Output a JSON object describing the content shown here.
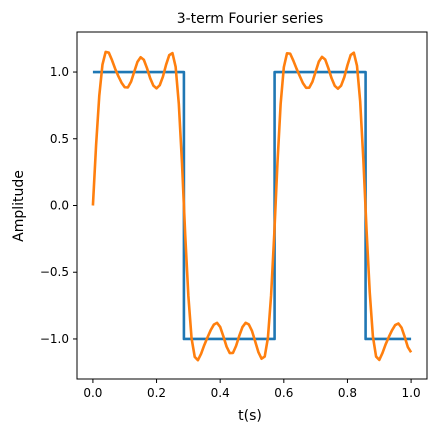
{
  "chart_data": {
    "type": "line",
    "title": "3-term Fourier series",
    "xlabel": "t(s)",
    "ylabel": "Amplitude",
    "xlim": [
      -0.05,
      1.05
    ],
    "ylim": [
      -1.3,
      1.3
    ],
    "xticks": [
      0.0,
      0.2,
      0.4,
      0.6,
      0.8,
      1.0
    ],
    "xtick_labels": [
      "0.0",
      "0.2",
      "0.4",
      "0.6",
      "0.8",
      "1.0"
    ],
    "yticks": [
      1.0,
      0.5,
      0.0,
      -0.5,
      -1.0
    ],
    "ytick_labels": [
      "1.0",
      "0.5",
      "0.0",
      "−0.5",
      "−1.0"
    ],
    "grid": false,
    "legend": "none",
    "series": [
      {
        "color": "#1f77b4",
        "x": [
          0.0,
          0.286,
          0.286,
          0.571,
          0.571,
          0.857,
          0.857,
          1.0
        ],
        "y": [
          1.0,
          1.0,
          -1.0,
          -1.0,
          1.0,
          1.0,
          -1.0,
          -1.0
        ]
      },
      {
        "color": "#ff7f0e",
        "x": [
          0.0,
          0.01,
          0.02,
          0.03,
          0.04,
          0.05,
          0.06,
          0.07,
          0.08,
          0.09,
          0.1,
          0.11,
          0.12,
          0.13,
          0.14,
          0.15,
          0.16,
          0.17,
          0.18,
          0.19,
          0.2,
          0.21,
          0.22,
          0.23,
          0.24,
          0.25,
          0.26,
          0.27,
          0.28,
          0.29,
          0.3,
          0.31,
          0.32,
          0.33,
          0.34,
          0.35,
          0.36,
          0.37,
          0.38,
          0.39,
          0.4,
          0.41,
          0.42,
          0.43,
          0.44,
          0.45,
          0.46,
          0.47,
          0.48,
          0.49,
          0.5,
          0.51,
          0.52,
          0.53,
          0.54,
          0.55,
          0.56,
          0.57,
          0.58,
          0.59,
          0.6,
          0.61,
          0.62,
          0.63,
          0.64,
          0.65,
          0.66,
          0.67,
          0.68,
          0.69,
          0.7,
          0.71,
          0.72,
          0.73,
          0.74,
          0.75,
          0.76,
          0.77,
          0.78,
          0.79,
          0.8,
          0.81,
          0.82,
          0.83,
          0.84,
          0.85,
          0.86,
          0.87,
          0.88,
          0.89,
          0.9,
          0.91,
          0.92,
          0.93,
          0.94,
          0.95,
          0.96,
          0.97,
          0.98,
          0.99,
          1.0
        ],
        "y": [
          0.0,
          0.453,
          0.822,
          1.055,
          1.151,
          1.145,
          1.089,
          1.024,
          0.969,
          0.92,
          0.886,
          0.885,
          0.928,
          1.003,
          1.076,
          1.111,
          1.092,
          1.029,
          0.954,
          0.898,
          0.878,
          0.901,
          0.965,
          1.055,
          1.127,
          1.142,
          1.039,
          0.761,
          0.318,
          -0.215,
          -0.678,
          -0.994,
          -1.134,
          -1.159,
          -1.111,
          -1.046,
          -0.989,
          -0.935,
          -0.893,
          -0.879,
          -0.91,
          -0.98,
          -1.057,
          -1.106,
          -1.105,
          -1.052,
          -0.976,
          -0.911,
          -0.879,
          -0.891,
          -0.94,
          -1.018,
          -1.098,
          -1.148,
          -1.132,
          -0.992,
          -0.674,
          -0.214,
          0.317,
          0.761,
          1.036,
          1.14,
          1.138,
          1.085,
          1.025,
          0.97,
          0.917,
          0.882,
          0.883,
          0.927,
          1.003,
          1.078,
          1.114,
          1.094,
          1.029,
          0.954,
          0.897,
          0.875,
          0.898,
          0.961,
          1.051,
          1.127,
          1.145,
          1.047,
          0.78,
          0.342,
          -0.184,
          -0.65,
          -0.982,
          -1.132,
          -1.157,
          -1.106,
          -1.04,
          -0.985,
          -0.935,
          -0.896,
          -0.884,
          -0.915,
          -0.985,
          -1.062,
          -1.1
        ]
      }
    ]
  }
}
